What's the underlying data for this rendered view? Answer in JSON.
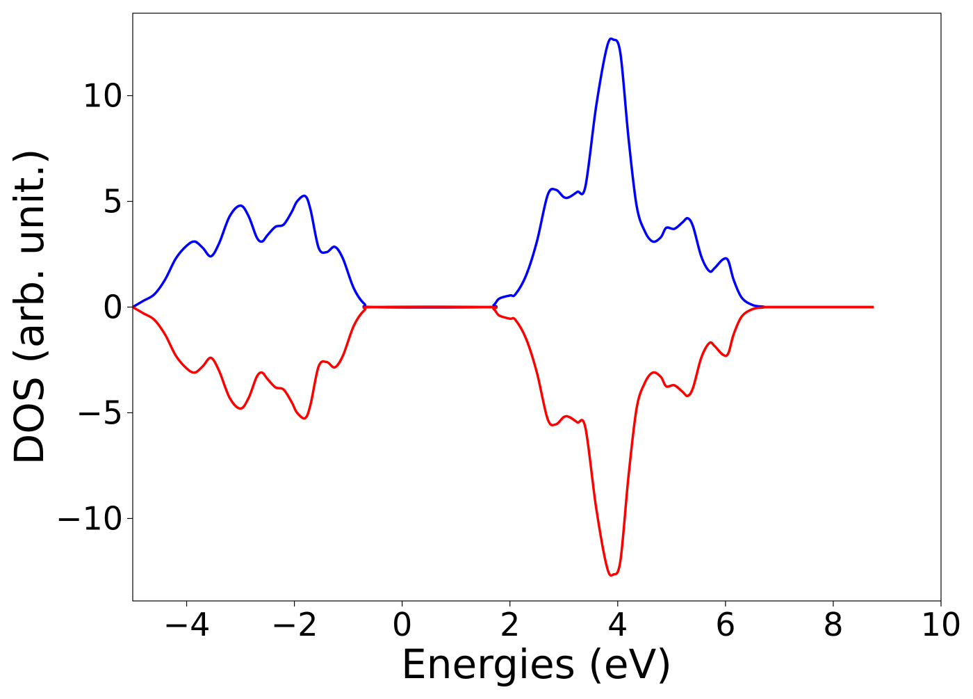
{
  "chart_data": {
    "type": "line",
    "title": "",
    "xlabel": "Energies (eV)",
    "ylabel": "DOS (arb. unit.)",
    "xlim": [
      -5,
      10
    ],
    "ylim": [
      -13.9,
      13.9
    ],
    "xticks": [
      -4,
      -2,
      0,
      2,
      4,
      6,
      8,
      10
    ],
    "xtick_labels": [
      "−4",
      "−2",
      "0",
      "2",
      "4",
      "6",
      "8",
      "10"
    ],
    "yticks": [
      -10,
      -5,
      0,
      5,
      10
    ],
    "ytick_labels": [
      "−10",
      "−5",
      "0",
      "5",
      "10"
    ],
    "grid": false,
    "legend": "none",
    "series": [
      {
        "color": "#0000ff",
        "x": [
          -5.0,
          -4.8,
          -4.6,
          -4.4,
          -4.2,
          -4.0,
          -3.85,
          -3.7,
          -3.55,
          -3.4,
          -3.2,
          -3.0,
          -2.85,
          -2.7,
          -2.6,
          -2.5,
          -2.35,
          -2.2,
          -2.05,
          -1.95,
          -1.8,
          -1.7,
          -1.55,
          -1.4,
          -1.25,
          -1.1,
          -0.9,
          -0.7,
          -0.5,
          1.55,
          1.7,
          1.8,
          2.0,
          2.1,
          2.3,
          2.5,
          2.7,
          2.85,
          3.0,
          3.1,
          3.25,
          3.4,
          3.6,
          3.8,
          3.92,
          4.05,
          4.2,
          4.35,
          4.5,
          4.65,
          4.8,
          4.9,
          5.05,
          5.2,
          5.3,
          5.4,
          5.55,
          5.7,
          5.8,
          5.95,
          6.05,
          6.15,
          6.3,
          6.5,
          6.7,
          6.9,
          8.75
        ],
        "y": [
          0.0,
          0.3,
          0.6,
          1.3,
          2.3,
          2.9,
          3.1,
          2.8,
          2.4,
          3.0,
          4.3,
          4.8,
          4.3,
          3.3,
          3.1,
          3.4,
          3.8,
          3.9,
          4.5,
          5.0,
          5.25,
          4.6,
          2.8,
          2.6,
          2.85,
          2.3,
          0.9,
          0.15,
          0.0,
          0.0,
          0.1,
          0.4,
          0.55,
          0.6,
          1.5,
          3.1,
          5.3,
          5.55,
          5.2,
          5.2,
          5.45,
          5.7,
          9.5,
          12.3,
          12.65,
          12.0,
          8.0,
          4.8,
          3.6,
          3.1,
          3.3,
          3.75,
          3.7,
          4.0,
          4.2,
          3.8,
          2.4,
          1.7,
          1.85,
          2.25,
          2.2,
          1.3,
          0.45,
          0.1,
          0.02,
          0.0,
          0.0
        ]
      },
      {
        "color": "#ff0000",
        "x": [
          -5.0,
          -4.8,
          -4.6,
          -4.4,
          -4.2,
          -4.0,
          -3.85,
          -3.7,
          -3.55,
          -3.4,
          -3.2,
          -3.0,
          -2.85,
          -2.7,
          -2.6,
          -2.5,
          -2.35,
          -2.2,
          -2.05,
          -1.95,
          -1.8,
          -1.7,
          -1.55,
          -1.4,
          -1.25,
          -1.1,
          -0.9,
          -0.7,
          -0.5,
          1.55,
          1.7,
          1.8,
          2.0,
          2.1,
          2.3,
          2.5,
          2.7,
          2.85,
          3.0,
          3.1,
          3.25,
          3.4,
          3.6,
          3.8,
          3.92,
          4.05,
          4.2,
          4.35,
          4.5,
          4.65,
          4.8,
          4.9,
          5.05,
          5.2,
          5.3,
          5.4,
          5.55,
          5.7,
          5.8,
          5.95,
          6.05,
          6.15,
          6.3,
          6.5,
          6.7,
          6.9,
          8.75
        ],
        "y": [
          0.0,
          -0.3,
          -0.6,
          -1.3,
          -2.3,
          -2.9,
          -3.1,
          -2.8,
          -2.4,
          -3.0,
          -4.3,
          -4.8,
          -4.3,
          -3.3,
          -3.1,
          -3.4,
          -3.8,
          -3.9,
          -4.5,
          -5.0,
          -5.25,
          -4.6,
          -2.8,
          -2.6,
          -2.85,
          -2.3,
          -0.9,
          -0.15,
          0.0,
          0.0,
          -0.1,
          -0.4,
          -0.55,
          -0.6,
          -1.5,
          -3.1,
          -5.3,
          -5.55,
          -5.2,
          -5.2,
          -5.45,
          -5.7,
          -9.5,
          -12.3,
          -12.65,
          -12.0,
          -8.0,
          -4.8,
          -3.6,
          -3.1,
          -3.3,
          -3.75,
          -3.7,
          -4.0,
          -4.2,
          -3.8,
          -2.4,
          -1.7,
          -1.85,
          -2.25,
          -2.2,
          -1.3,
          -0.45,
          -0.1,
          -0.02,
          0.0,
          0.0
        ]
      }
    ]
  }
}
